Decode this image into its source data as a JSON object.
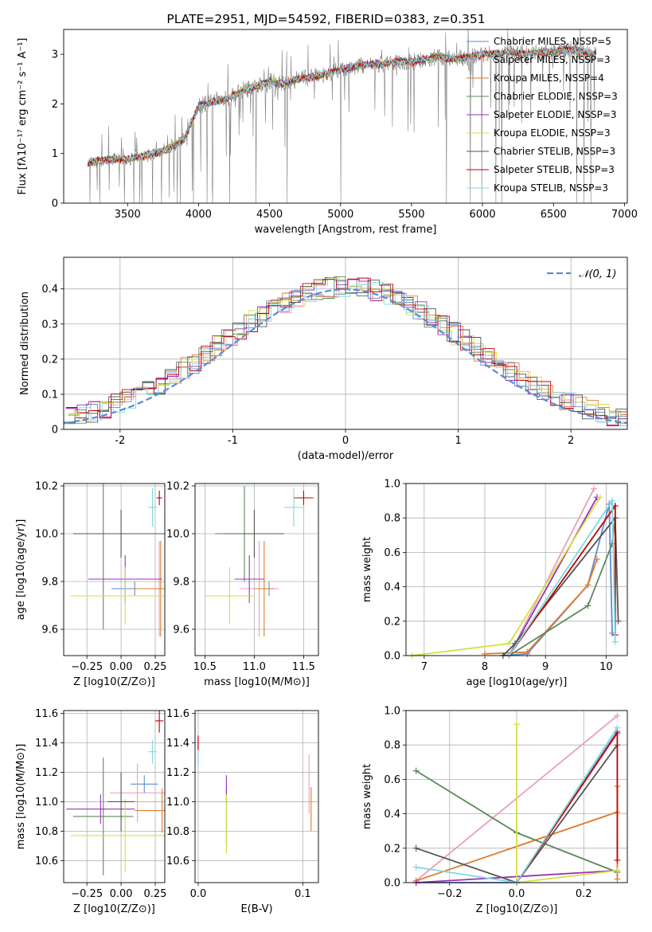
{
  "title": "PLATE=2951, MJD=54592, FIBERID=0383, z=0.351",
  "colors": {
    "Chabrier MILES": "#5b8bd6",
    "Salpeter MILES": "#e8a0b8",
    "Kroupa MILES": "#e07b2a",
    "Chabrier ELODIE": "#5a8a5a",
    "Salpeter ELODIE": "#9b30b8",
    "Kroupa ELODIE": "#d4e040",
    "Chabrier STELIB": "#555555",
    "Salpeter STELIB": "#c00000",
    "Kroupa STELIB": "#7fd8e0",
    "data": "#808080",
    "normal": "#5b8bd6"
  },
  "chart_data": [
    {
      "type": "line",
      "panel": "spectrum",
      "xlabel": "wavelength [Angstrom, rest frame]",
      "ylabel": "Flux [fλ10⁻¹⁷ erg cm⁻² s⁻¹ A⁻¹]",
      "xlim": [
        3050,
        7020
      ],
      "ylim": [
        0,
        3.5
      ],
      "xticks": [
        3500,
        4000,
        4500,
        5000,
        5500,
        6000,
        6500,
        7000
      ],
      "yticks": [
        0,
        1,
        2,
        3
      ],
      "legend_position": "top-right",
      "legend": [
        "Chabrier MILES, NSSP=5",
        "Salpeter MILES, NSSP=3",
        "Kroupa MILES, NSSP=4",
        "Chabrier ELODIE, NSSP=3",
        "Salpeter ELODIE, NSSP=3",
        "Kroupa ELODIE, NSSP=3",
        "Chabrier STELIB, NSSP=3",
        "Salpeter STELIB, NSSP=3",
        "Kroupa STELIB, NSSP=3"
      ],
      "continuum": {
        "x": [
          3220,
          3300,
          3400,
          3500,
          3600,
          3700,
          3800,
          3900,
          4000,
          4100,
          4200,
          4300,
          4400,
          4500,
          4600,
          4700,
          4800,
          4900,
          5000,
          5100,
          5200,
          5300,
          5400,
          5500,
          5600,
          5700,
          5800,
          5900,
          6000,
          6100,
          6200,
          6300,
          6400,
          6500,
          6600,
          6700,
          6800
        ],
        "y": [
          0.8,
          0.85,
          0.9,
          0.88,
          0.95,
          1.0,
          1.1,
          1.3,
          1.95,
          2.05,
          2.1,
          2.25,
          2.35,
          2.45,
          2.4,
          2.5,
          2.55,
          2.6,
          2.7,
          2.75,
          2.8,
          2.8,
          2.85,
          2.85,
          2.9,
          2.95,
          2.9,
          2.95,
          3.0,
          3.0,
          3.05,
          3.0,
          3.05,
          3.05,
          3.1,
          3.05,
          3.0
        ]
      }
    },
    {
      "type": "line",
      "panel": "residual-distribution",
      "xlabel": "(data-model)/error",
      "ylabel": "Normed distribution",
      "xlim": [
        -2.5,
        2.5
      ],
      "ylim": [
        0,
        0.49
      ],
      "xticks": [
        -2,
        -1,
        0,
        1,
        2
      ],
      "yticks": [
        0.0,
        0.1,
        0.2,
        0.3,
        0.4
      ],
      "legend": [
        "𝒩(0, 1)"
      ],
      "legend_position": "top-right",
      "grid": true
    },
    {
      "type": "scatter",
      "panel": "age-vs-Z",
      "xlabel": "Z [log10(Z/Z⊙)]",
      "ylabel": "age [log10(age/yr)]",
      "xlim": [
        -0.42,
        0.32
      ],
      "ylim": [
        9.49,
        10.21
      ],
      "xticks": [
        "−0.25",
        "0.00",
        "0.25"
      ],
      "yticks": [
        "9.6",
        "9.8",
        "10.0",
        "10.2"
      ],
      "points": [
        {
          "model": "Chabrier MILES",
          "x": 0.1,
          "y": 9.77,
          "xerr": 0.17,
          "yerr": 0.03
        },
        {
          "model": "Salpeter MILES",
          "x": 0.28,
          "y": 9.77,
          "xerr": 0.1,
          "yerr": 0.2
        },
        {
          "model": "Kroupa MILES",
          "x": 0.29,
          "y": 9.77,
          "xerr": 0.2,
          "yerr": 0.2
        },
        {
          "model": "Chabrier ELODIE",
          "x": -0.13,
          "y": 10.0,
          "xerr": 0.22,
          "yerr": 0.4
        },
        {
          "model": "Salpeter ELODIE",
          "x": 0.03,
          "y": 9.81,
          "xerr": 0.27,
          "yerr": 0.1
        },
        {
          "model": "Kroupa ELODIE",
          "x": 0.03,
          "y": 9.74,
          "xerr": 0.4,
          "yerr": 0.12
        },
        {
          "model": "Chabrier STELIB",
          "x": 0.0,
          "y": 10.0,
          "xerr": 0.35,
          "yerr": 0.1
        },
        {
          "model": "Salpeter STELIB",
          "x": 0.28,
          "y": 10.15,
          "xerr": 0.02,
          "yerr": 0.03
        },
        {
          "model": "Kroupa STELIB",
          "x": 0.23,
          "y": 10.11,
          "xerr": 0.03,
          "yerr": 0.08
        }
      ]
    },
    {
      "type": "scatter",
      "panel": "age-vs-mass",
      "xlabel": "mass [log10(M/M⊙)]",
      "ylabel": "",
      "xlim": [
        10.4,
        11.65
      ],
      "ylim": [
        9.49,
        10.21
      ],
      "xticks": [
        "10.5",
        "11.0",
        "11.5"
      ],
      "yticks": [
        "9.6",
        "9.8",
        "10.0",
        "10.2"
      ],
      "points": [
        {
          "model": "Chabrier MILES",
          "x": 11.15,
          "y": 9.77,
          "xerr": 0.05,
          "yerr": 0.03
        },
        {
          "model": "Salpeter MILES",
          "x": 11.05,
          "y": 9.77,
          "xerr": 0.2,
          "yerr": 0.2
        },
        {
          "model": "Kroupa MILES",
          "x": 11.1,
          "y": 9.77,
          "xerr": 0.1,
          "yerr": 0.2
        },
        {
          "model": "Chabrier ELODIE",
          "x": 10.9,
          "y": 10.0,
          "xerr": 0.3,
          "yerr": 0.2
        },
        {
          "model": "Salpeter ELODIE",
          "x": 10.95,
          "y": 9.81,
          "xerr": 0.15,
          "yerr": 0.1
        },
        {
          "model": "Kroupa ELODIE",
          "x": 10.75,
          "y": 9.74,
          "xerr": 0.25,
          "yerr": 0.12
        },
        {
          "model": "Chabrier STELIB",
          "x": 11.0,
          "y": 10.0,
          "xerr": 0.3,
          "yerr": 0.1
        },
        {
          "model": "Salpeter STELIB",
          "x": 11.5,
          "y": 10.15,
          "xerr": 0.1,
          "yerr": 0.03
        },
        {
          "model": "Kroupa STELIB",
          "x": 11.4,
          "y": 10.11,
          "xerr": 0.1,
          "yerr": 0.08
        }
      ]
    },
    {
      "type": "line",
      "panel": "cumulative-mass-weight-vs-age",
      "xlabel": "age [log10(age/yr)]",
      "ylabel": "mass weight",
      "xlim": [
        6.7,
        10.35
      ],
      "ylim": [
        0,
        1.0
      ],
      "xticks": [
        "7",
        "8",
        "9",
        "10"
      ],
      "yticks": [
        "0.0",
        "0.2",
        "0.4",
        "0.6",
        "0.8",
        "1.0"
      ],
      "grid": true,
      "series": [
        {
          "name": "Chabrier MILES",
          "x": [
            8.3,
            8.7,
            9.7,
            10.05,
            10.1
          ],
          "y": [
            0.0,
            0.01,
            0.41,
            0.88,
            0.13
          ]
        },
        {
          "name": "Salpeter MILES",
          "x": [
            8.4,
            9.8
          ],
          "y": [
            0.0,
            0.97
          ]
        },
        {
          "name": "Kroupa MILES",
          "x": [
            8.0,
            8.7,
            9.7,
            9.85
          ],
          "y": [
            0.01,
            0.02,
            0.41,
            0.56
          ]
        },
        {
          "name": "Chabrier ELODIE",
          "x": [
            8.4,
            9.7,
            10.1,
            10.15
          ],
          "y": [
            0.0,
            0.29,
            0.65,
            0.8
          ]
        },
        {
          "name": "Salpeter ELODIE",
          "x": [
            8.4,
            9.85
          ],
          "y": [
            0.0,
            0.92
          ]
        },
        {
          "name": "Kroupa ELODIE",
          "x": [
            6.8,
            8.4,
            9.9
          ],
          "y": [
            0.0,
            0.07,
            0.92
          ]
        },
        {
          "name": "Chabrier STELIB",
          "x": [
            8.3,
            8.5,
            10.15,
            10.2
          ],
          "y": [
            0.0,
            0.07,
            0.8,
            0.2
          ]
        },
        {
          "name": "Salpeter STELIB",
          "x": [
            8.4,
            10.15,
            10.15
          ],
          "y": [
            0.0,
            0.87,
            0.12
          ]
        },
        {
          "name": "Kroupa STELIB",
          "x": [
            8.4,
            10.1,
            10.15
          ],
          "y": [
            0.0,
            0.9,
            0.08
          ]
        }
      ]
    },
    {
      "type": "scatter",
      "panel": "mass-vs-Z",
      "xlabel": "Z [log10(Z/Z⊙)]",
      "ylabel": "mass [log10(M/M⊙)]",
      "xlim": [
        -0.42,
        0.32
      ],
      "ylim": [
        10.45,
        11.62
      ],
      "xticks": [
        "−0.25",
        "0.00",
        "0.25"
      ],
      "yticks": [
        "10.6",
        "10.8",
        "11.0",
        "11.2",
        "11.4",
        "11.6"
      ],
      "points": [
        {
          "model": "Chabrier MILES",
          "x": 0.17,
          "y": 11.12,
          "xerr": 0.1,
          "yerr": 0.06
        },
        {
          "model": "Salpeter MILES",
          "x": 0.12,
          "y": 11.06,
          "xerr": 0.2,
          "yerr": 0.2
        },
        {
          "model": "Kroupa MILES",
          "x": 0.3,
          "y": 10.94,
          "xerr": 0.2,
          "yerr": 0.15
        },
        {
          "model": "Chabrier ELODIE",
          "x": -0.13,
          "y": 10.9,
          "xerr": 0.22,
          "yerr": 0.4
        },
        {
          "model": "Salpeter ELODIE",
          "x": -0.15,
          "y": 10.95,
          "xerr": 0.25,
          "yerr": 0.1
        },
        {
          "model": "Kroupa ELODIE",
          "x": 0.03,
          "y": 10.77,
          "xerr": 0.4,
          "yerr": 0.25
        },
        {
          "model": "Chabrier STELIB",
          "x": 0.0,
          "y": 11.0,
          "xerr": 0.1,
          "yerr": 0.2
        },
        {
          "model": "Salpeter STELIB",
          "x": 0.28,
          "y": 11.55,
          "xerr": 0.03,
          "yerr": 0.08
        },
        {
          "model": "Kroupa STELIB",
          "x": 0.23,
          "y": 11.34,
          "xerr": 0.03,
          "yerr": 0.08
        }
      ]
    },
    {
      "type": "scatter",
      "panel": "mass-vs-EBV",
      "xlabel": "E(B-V)",
      "ylabel": "",
      "xlim": [
        -0.003,
        0.115
      ],
      "ylim": [
        10.45,
        11.62
      ],
      "xticks": [
        "0.0",
        "0.1"
      ],
      "yticks": [
        "10.6",
        "10.8",
        "11.0",
        "11.2",
        "11.4",
        "11.6"
      ],
      "points": [
        {
          "model": "Chabrier MILES",
          "x": 0.0,
          "y": 11.3,
          "xerr": 0,
          "yerr": 0.05
        },
        {
          "model": "Salpeter MILES",
          "x": 0.106,
          "y": 11.12,
          "xerr": 0,
          "yerr": 0.2
        },
        {
          "model": "Kroupa MILES",
          "x": 0.108,
          "y": 10.95,
          "xerr": 0,
          "yerr": 0.15
        },
        {
          "model": "Chabrier ELODIE",
          "x": 0.027,
          "y": 10.9,
          "xerr": 0,
          "yerr": 0.2
        },
        {
          "model": "Salpeter ELODIE",
          "x": 0.027,
          "y": 11.08,
          "xerr": 0,
          "yerr": 0.1
        },
        {
          "model": "Kroupa ELODIE",
          "x": 0.027,
          "y": 10.85,
          "xerr": 0,
          "yerr": 0.2
        },
        {
          "model": "Chabrier STELIB",
          "x": 0.0,
          "y": 11.4,
          "xerr": 0,
          "yerr": 0.05
        },
        {
          "model": "Salpeter STELIB",
          "x": 0.0,
          "y": 11.4,
          "xerr": 0,
          "yerr": 0.05
        },
        {
          "model": "Kroupa STELIB",
          "x": 0.0,
          "y": 11.3,
          "xerr": 0,
          "yerr": 0.05
        }
      ]
    },
    {
      "type": "line",
      "panel": "mass-weight-vs-Z",
      "xlabel": "Z [log10(Z/Z⊙)]",
      "ylabel": "mass weight",
      "xlim": [
        -0.33,
        0.33
      ],
      "ylim": [
        0,
        1.0
      ],
      "xticks": [
        "−0.2",
        "0.0",
        "0.2"
      ],
      "yticks": [
        "0.0",
        "0.2",
        "0.4",
        "0.6",
        "0.8",
        "1.0"
      ],
      "grid": true,
      "series": [
        {
          "name": "Chabrier MILES",
          "x": [
            -0.3,
            0.0,
            0.3
          ],
          "y": [
            0.0,
            0.0,
            0.88
          ]
        },
        {
          "name": "Salpeter MILES",
          "x": [
            -0.3,
            0.3
          ],
          "y": [
            0.01,
            0.97
          ]
        },
        {
          "name": "Kroupa MILES",
          "x": [
            -0.3,
            0.3,
            0.3,
            0.3
          ],
          "y": [
            0.01,
            0.41,
            0.56,
            0.02
          ]
        },
        {
          "name": "Chabrier ELODIE",
          "x": [
            -0.3,
            0.0,
            0.3
          ],
          "y": [
            0.65,
            0.29,
            0.06
          ]
        },
        {
          "name": "Salpeter ELODIE",
          "x": [
            -0.3,
            0.3
          ],
          "y": [
            0.0,
            0.07
          ]
        },
        {
          "name": "Kroupa ELODIE",
          "x": [
            0.0,
            0.0,
            0.3
          ],
          "y": [
            0.92,
            0.0,
            0.07
          ]
        },
        {
          "name": "Chabrier STELIB",
          "x": [
            -0.3,
            0.0,
            0.3
          ],
          "y": [
            0.2,
            0.0,
            0.8
          ]
        },
        {
          "name": "Salpeter STELIB",
          "x": [
            0.0,
            0.3,
            0.3
          ],
          "y": [
            0.0,
            0.87,
            0.13
          ]
        },
        {
          "name": "Kroupa STELIB",
          "x": [
            -0.3,
            0.0,
            0.3
          ],
          "y": [
            0.09,
            0.0,
            0.9
          ]
        }
      ]
    }
  ]
}
